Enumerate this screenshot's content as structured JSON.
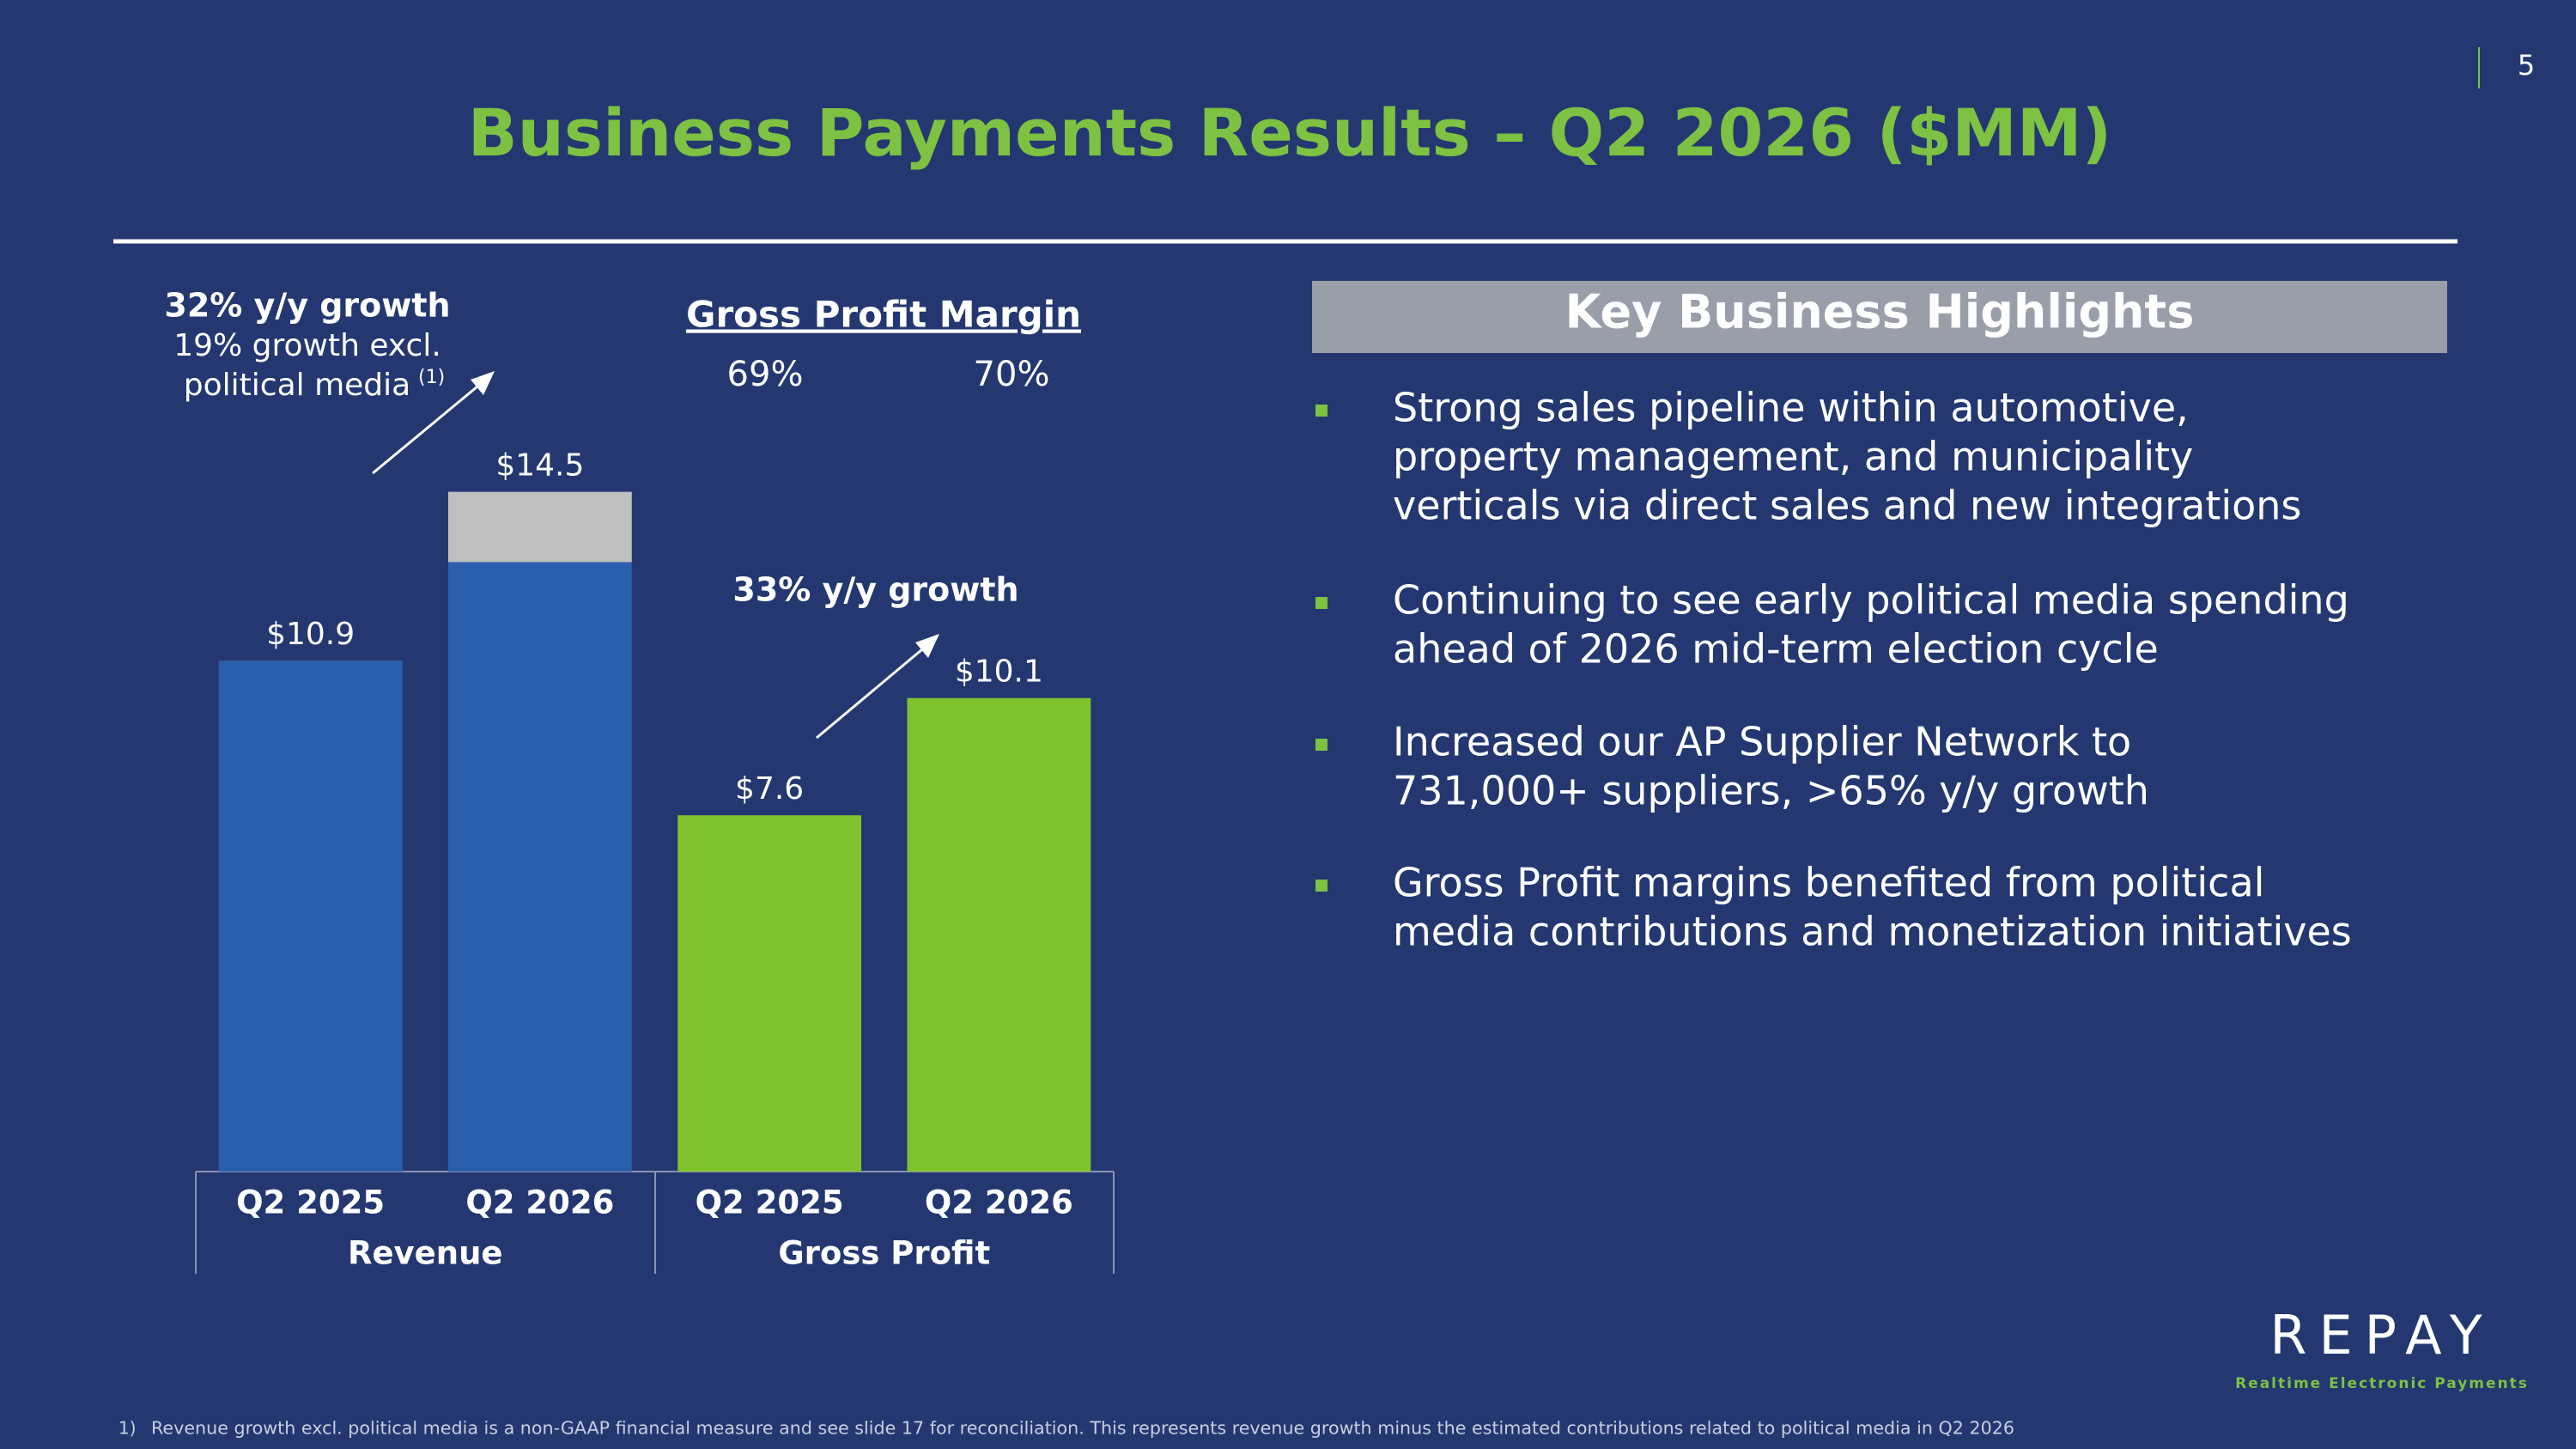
{
  "page_number": "5",
  "chart_data": {
    "type": "bar",
    "stacked": true,
    "title": "Business Payments Results – Q2 2026 ($MM)",
    "categories": [
      "Q2 2025",
      "Q2 2026",
      "Q2 2025",
      "Q2 2026"
    ],
    "groups": [
      "Revenue",
      "Gross Profit"
    ],
    "series": [
      {
        "color": "#2a5fad",
        "values": [
          10.9,
          13.0,
          null,
          null
        ]
      },
      {
        "color": "#bfbfbf",
        "values": [
          null,
          1.5,
          null,
          null
        ]
      },
      {
        "color": "#80c32e",
        "values": [
          null,
          null,
          7.6,
          10.1
        ]
      }
    ],
    "totals": [
      10.9,
      14.5,
      7.6,
      10.1
    ],
    "total_labels": [
      "$10.9",
      "$14.5",
      "$7.6",
      "$10.1"
    ],
    "ylim": [
      0,
      20
    ],
    "annotations": {
      "revenue_growth": "32% y/y growth",
      "revenue_excl": [
        "19% growth excl.",
        "political media"
      ],
      "note_mark": "(1)",
      "gross_profit_growth": "33% y/y growth"
    },
    "margin": {
      "title": "Gross Profit Margin",
      "values": [
        "69%",
        "70%"
      ]
    }
  },
  "highlights": {
    "title": "Key Business Highlights",
    "items": [
      [
        "Strong sales pipeline within automotive,",
        "property management, and municipality",
        "verticals via direct sales and new integrations"
      ],
      [
        "Continuing to see early political media spending",
        "ahead of 2026 mid-term election cycle"
      ],
      [
        "Increased our AP Supplier Network to",
        "731,000+ suppliers, >65% y/y growth"
      ],
      [
        "Gross Profit margins benefited from political",
        "media contributions and monetization initiatives"
      ]
    ]
  },
  "footnote": {
    "number": "1)",
    "text": "Revenue growth excl. political media is a non-GAAP financial measure and see slide 17 for reconciliation. This represents revenue growth minus the estimated contributions related to political media in Q2 2026"
  },
  "logo": {
    "name": "REPAY",
    "tagline": "Realtime Electronic Payments"
  }
}
